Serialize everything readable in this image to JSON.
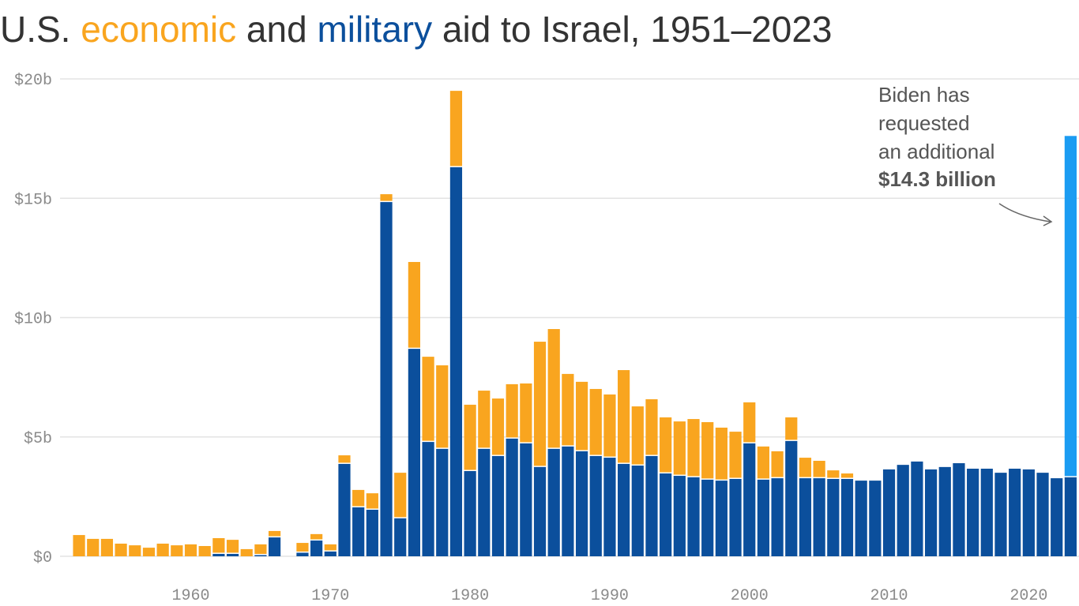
{
  "chart_data": {
    "type": "stacked-bar",
    "title_parts": [
      "U.S.",
      "and",
      "aid to Israel, 1951–2023"
    ],
    "x": [
      1951,
      1952,
      1953,
      1954,
      1955,
      1956,
      1957,
      1958,
      1959,
      1960,
      1961,
      1962,
      1963,
      1964,
      1965,
      1966,
      1967,
      1968,
      1969,
      1970,
      1971,
      1972,
      1973,
      1974,
      1975,
      1976,
      1977,
      1978,
      1979,
      1980,
      1981,
      1982,
      1983,
      1984,
      1985,
      1986,
      1987,
      1988,
      1989,
      1990,
      1991,
      1992,
      1993,
      1994,
      1995,
      1996,
      1997,
      1998,
      1999,
      2000,
      2001,
      2002,
      2003,
      2004,
      2005,
      2006,
      2007,
      2008,
      2009,
      2010,
      2011,
      2012,
      2013,
      2014,
      2015,
      2016,
      2017,
      2018,
      2019,
      2020,
      2021,
      2022,
      2023
    ],
    "series": [
      {
        "name": "military",
        "color": "#0b4f9c",
        "values": [
          0,
          0,
          0,
          0,
          0,
          0,
          0,
          0,
          0,
          0,
          0,
          0.1,
          0.1,
          0,
          0.05,
          0.79,
          0,
          0.15,
          0.66,
          0.2,
          3.87,
          2.05,
          1.95,
          14.84,
          1.59,
          8.69,
          4.79,
          4.5,
          16.3,
          3.57,
          4.5,
          4.2,
          4.93,
          4.73,
          3.74,
          4.5,
          4.6,
          4.4,
          4.2,
          4.13,
          3.87,
          3.8,
          4.2,
          3.47,
          3.37,
          3.31,
          3.21,
          3.17,
          3.24,
          4.73,
          3.21,
          3.27,
          4.83,
          3.27,
          3.27,
          3.24,
          3.24,
          3.17,
          3.17,
          3.64,
          3.83,
          3.97,
          3.64,
          3.74,
          3.9,
          3.67,
          3.67,
          3.5,
          3.67,
          3.64,
          3.5,
          3.27,
          3.31
        ]
      },
      {
        "name": "economic",
        "color": "#f9a51f",
        "values": [
          0,
          0.89,
          0.73,
          0.73,
          0.53,
          0.46,
          0.36,
          0.53,
          0.46,
          0.5,
          0.43,
          0.66,
          0.59,
          0.3,
          0.45,
          0.27,
          0,
          0.41,
          0.27,
          0.3,
          0.36,
          0.73,
          0.69,
          0.33,
          1.91,
          3.64,
          3.57,
          3.5,
          3.2,
          2.78,
          2.44,
          2.41,
          2.28,
          2.51,
          5.25,
          5.02,
          3.04,
          2.91,
          2.81,
          2.65,
          3.93,
          2.48,
          2.38,
          2.35,
          2.28,
          2.44,
          2.41,
          2.22,
          1.98,
          1.72,
          1.39,
          1.13,
          0.99,
          0.86,
          0.73,
          0.36,
          0.23,
          0,
          0,
          0,
          0,
          0,
          0,
          0,
          0,
          0,
          0,
          0,
          0,
          0,
          0,
          0,
          0
        ]
      }
    ],
    "request": {
      "values": [
        14.3
      ],
      "value_labels": [
        "$14.3 billion"
      ],
      "color": "#1b9cf2"
    },
    "annotation": [
      "Biden has",
      "requested",
      "an additional"
    ],
    "xlim": [
      1950.3,
      2023.6
    ],
    "xticks": [
      1960,
      1970,
      1980,
      1990,
      2000,
      2010,
      2020
    ],
    "ylim": [
      0,
      20
    ],
    "yticks": [
      {
        "value": 0,
        "label": "$0"
      },
      {
        "value": 5,
        "label": "$5b"
      },
      {
        "value": 10,
        "label": "$10b"
      },
      {
        "value": 15,
        "label": "$15b"
      },
      {
        "value": 20,
        "label": "$20b"
      }
    ],
    "grid": true
  }
}
